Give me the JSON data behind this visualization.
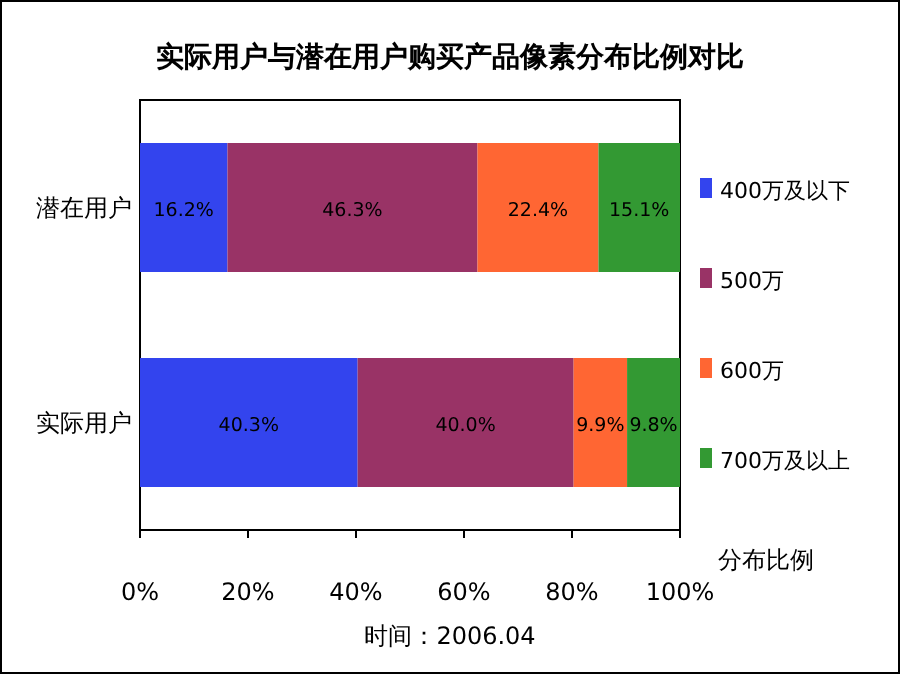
{
  "chart_data": {
    "type": "bar",
    "orientation": "horizontal",
    "stacked": true,
    "title": "实际用户与潜在用户购买产品像素分布比例对比",
    "xlabel": "分布比例",
    "categories": [
      "潜在用户",
      "实际用户"
    ],
    "series": [
      {
        "name": "400万及以下",
        "color": "#3344ee",
        "values": [
          16.2,
          40.3
        ],
        "value_labels": [
          "16.2%",
          "40.3%"
        ]
      },
      {
        "name": "500万",
        "color": "#993366",
        "values": [
          46.3,
          40.0
        ],
        "value_labels": [
          "46.3%",
          "40.0%"
        ]
      },
      {
        "name": "600万",
        "color": "#ff6633",
        "values": [
          22.4,
          9.9
        ],
        "value_labels": [
          "22.4%",
          "9.9%"
        ]
      },
      {
        "name": "700万及以上",
        "color": "#339933",
        "values": [
          15.1,
          9.8
        ],
        "value_labels": [
          "15.1%",
          "9.8%"
        ]
      }
    ],
    "xlim": [
      0,
      100
    ],
    "xticks": [
      {
        "value": 0,
        "label": "0%"
      },
      {
        "value": 20,
        "label": "20%"
      },
      {
        "value": 40,
        "label": "40%"
      },
      {
        "value": 60,
        "label": "60%"
      },
      {
        "value": 80,
        "label": "80%"
      },
      {
        "value": 100,
        "label": "100%"
      }
    ],
    "legend": "right",
    "annotations": [
      "时间：2006.04"
    ]
  }
}
